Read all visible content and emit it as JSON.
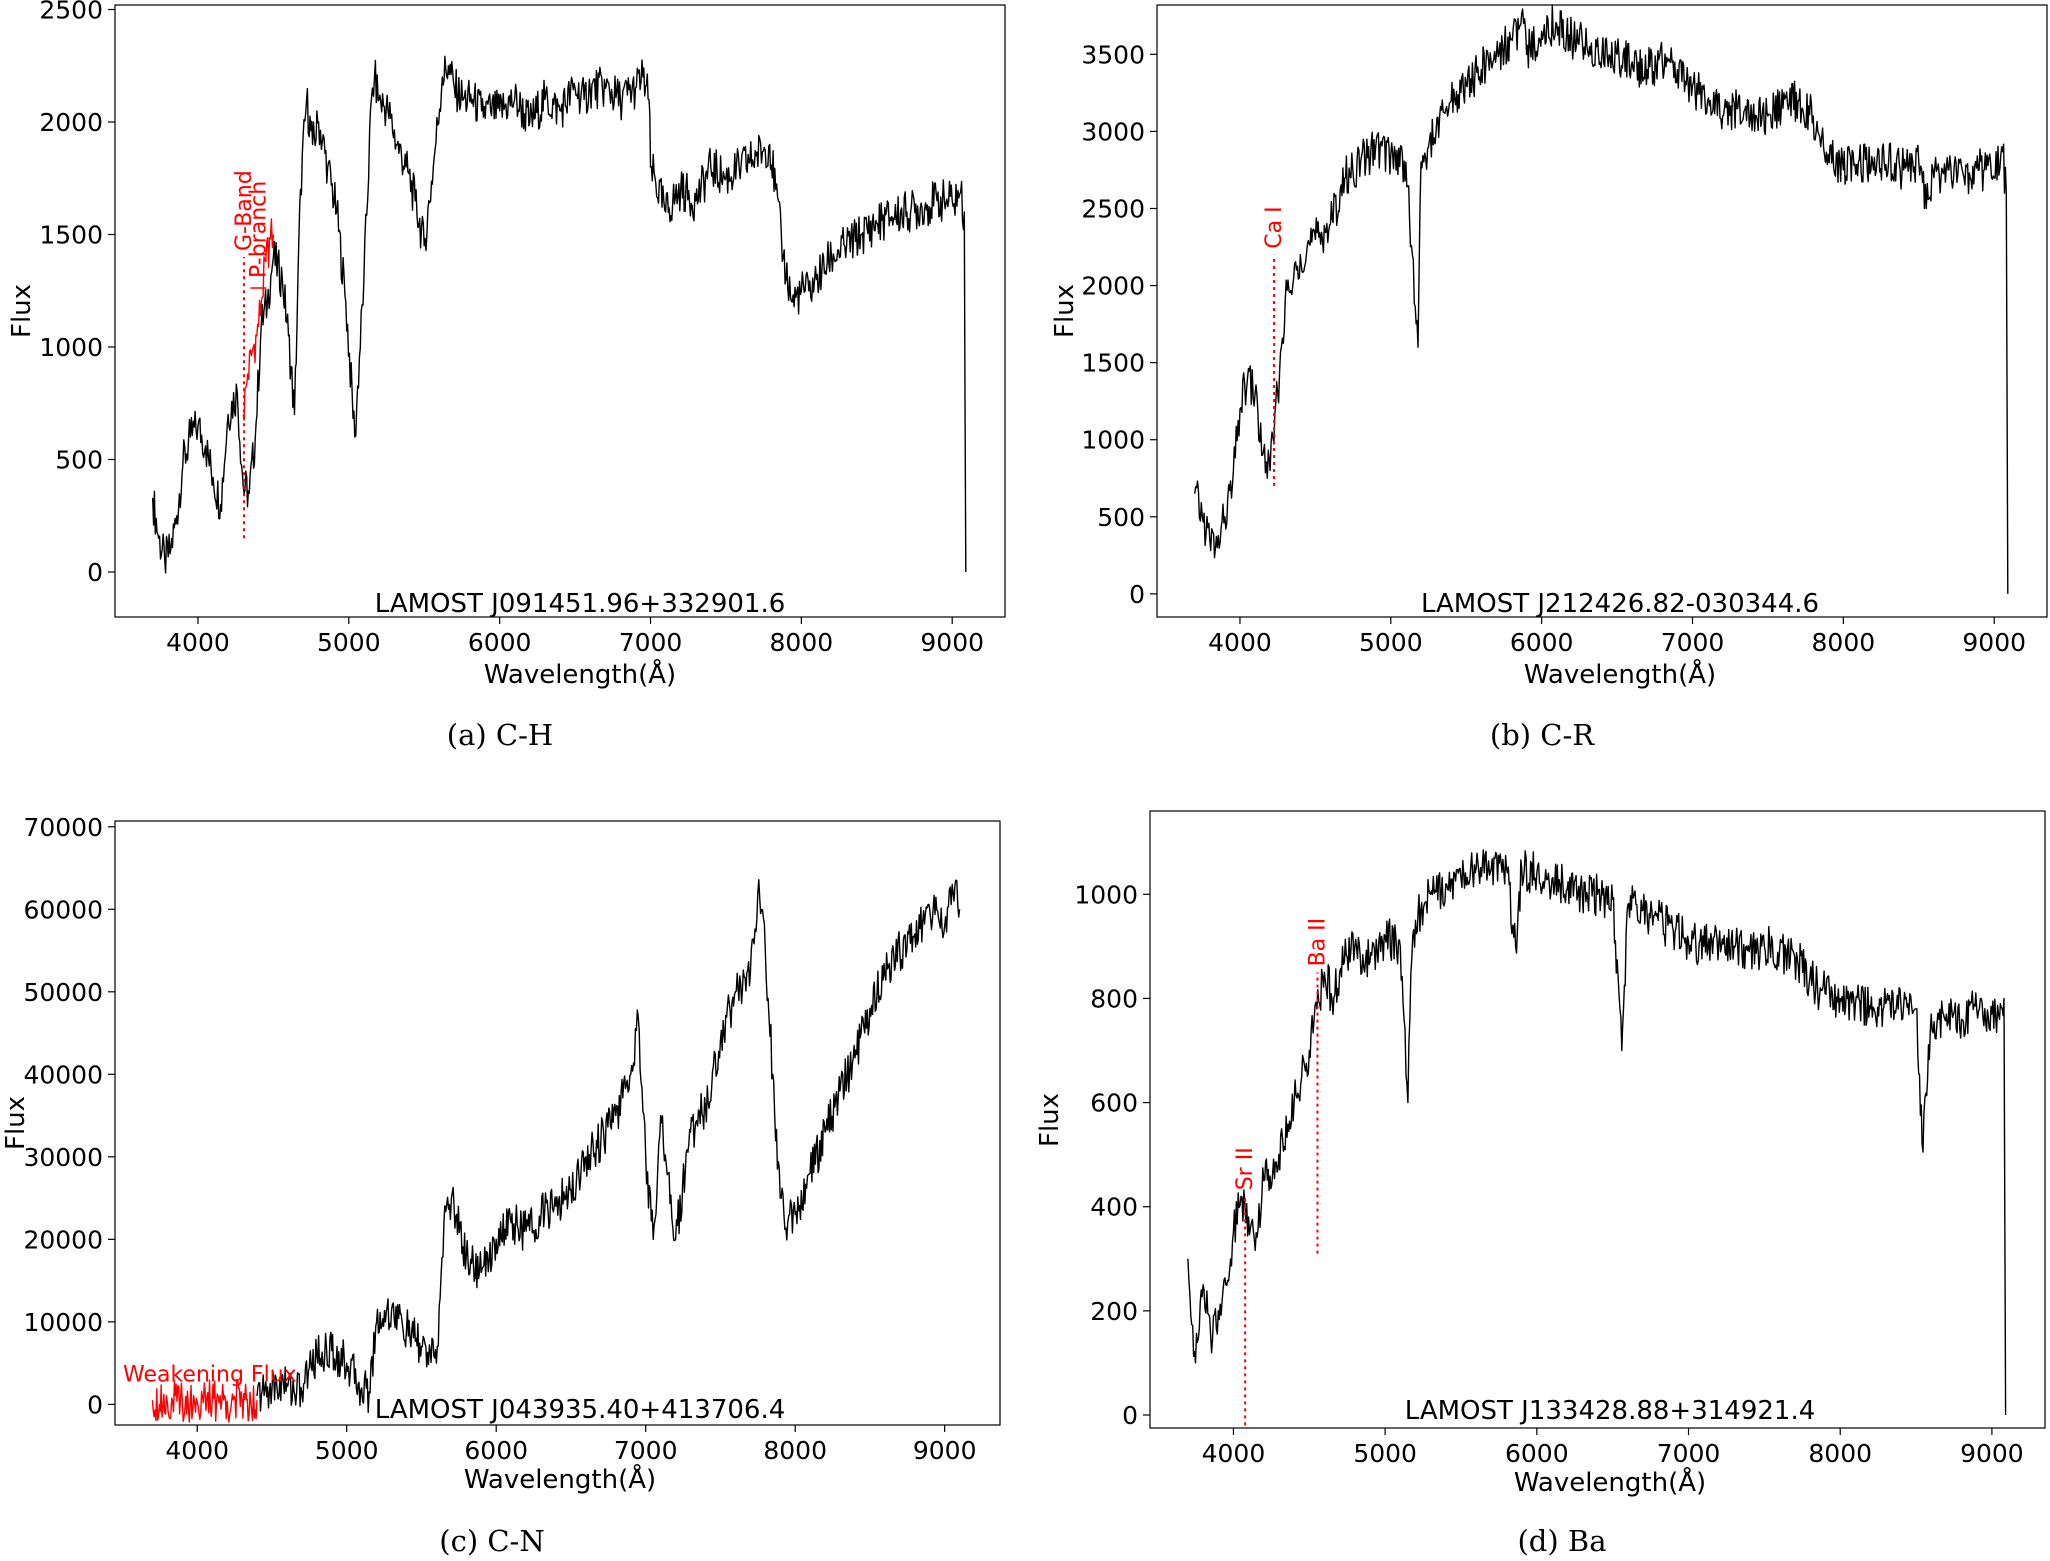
{
  "chart_data": [
    {
      "type": "line",
      "title": "LAMOST J091451.96+332901.6",
      "caption": "(a) C-H",
      "xlabel": "Wavelength(Å)",
      "ylabel": "Flux",
      "xlim": [
        3450,
        9350
      ],
      "ylim": [
        -200,
        2520
      ],
      "xticks": [
        4000,
        5000,
        6000,
        7000,
        8000,
        9000
      ],
      "yticks": [
        0,
        500,
        1000,
        1500,
        2000,
        2500
      ],
      "series": [
        {
          "color": "#000000",
          "x": [
            3700,
            3740,
            3780,
            3820,
            3860,
            3900,
            3950,
            4000,
            4050,
            4100,
            4150,
            4200,
            4260,
            4300,
            4340,
            4380,
            4420,
            4460,
            4500,
            4560,
            4600,
            4640,
            4680,
            4720,
            4760,
            4800,
            4860,
            4920,
            4980,
            5040,
            5100,
            5150,
            5170,
            5200,
            5260,
            5320,
            5380,
            5440,
            5500,
            5560,
            5620,
            5660,
            5700,
            5760,
            5820,
            5880,
            5940,
            6000,
            6100,
            6200,
            6300,
            6400,
            6500,
            6560,
            6600,
            6700,
            6800,
            6900,
            6950,
            6990,
            7000,
            7100,
            7200,
            7300,
            7400,
            7500,
            7600,
            7700,
            7790,
            7830,
            7880,
            7940,
            8000,
            8050,
            8100,
            8200,
            8300,
            8400,
            8500,
            8600,
            8700,
            8800,
            8900,
            9000,
            9050,
            9080,
            9090
          ],
          "y": [
            330,
            150,
            50,
            100,
            250,
            480,
            600,
            650,
            560,
            420,
            300,
            700,
            800,
            380,
            350,
            600,
            1100,
            1200,
            1400,
            1300,
            1050,
            700,
            1700,
            2100,
            1900,
            2000,
            1800,
            1600,
            1200,
            600,
            1300,
            2100,
            2200,
            2100,
            2050,
            1900,
            1800,
            1650,
            1450,
            1800,
            2200,
            2250,
            2150,
            2100,
            2100,
            2050,
            2050,
            2050,
            2100,
            2000,
            2100,
            2050,
            2150,
            2100,
            2150,
            2150,
            2100,
            2150,
            2200,
            2100,
            1800,
            1600,
            1700,
            1650,
            1800,
            1750,
            1800,
            1850,
            1900,
            1700,
            1400,
            1200,
            1250,
            1250,
            1300,
            1400,
            1450,
            1500,
            1550,
            1580,
            1600,
            1620,
            1650,
            1650,
            1680,
            1600,
            0
          ]
        },
        {
          "color": "#ff0000",
          "x": [
            4300,
            4330,
            4360,
            4390,
            4420,
            4450,
            4480,
            4500
          ],
          "y": [
            700,
            880,
            980,
            1050,
            1200,
            1380,
            1480,
            1500
          ]
        }
      ],
      "annotations": [
        {
          "label": "G-Band",
          "x": 4305,
          "y_from": 150,
          "y_to": 1400
        },
        {
          "label": "P-branch",
          "x": 4400,
          "y_from": 1400,
          "y_to": 1400
        }
      ]
    },
    {
      "type": "line",
      "title": "LAMOST J212426.82-030344.6",
      "caption": "(b) C-R",
      "xlabel": "Wavelength(Å)",
      "ylabel": "Flux",
      "xlim": [
        3450,
        9350
      ],
      "ylim": [
        -150,
        3820
      ],
      "xticks": [
        4000,
        5000,
        6000,
        7000,
        8000,
        9000
      ],
      "yticks": [
        0,
        500,
        1000,
        1500,
        2000,
        2500,
        3000,
        3500
      ],
      "series": [
        {
          "color": "#000000",
          "x": [
            3700,
            3750,
            3800,
            3850,
            3900,
            3950,
            4000,
            4050,
            4100,
            4150,
            4200,
            4250,
            4300,
            4350,
            4400,
            4500,
            4600,
            4700,
            4800,
            4900,
            5000,
            5100,
            5180,
            5200,
            5250,
            5300,
            5400,
            5500,
            5600,
            5700,
            5800,
            5880,
            5900,
            6000,
            6100,
            6200,
            6300,
            6400,
            6500,
            6600,
            6700,
            6800,
            6900,
            7000,
            7100,
            7200,
            7300,
            7400,
            7500,
            7600,
            7700,
            7800,
            7850,
            7900,
            8000,
            8100,
            8200,
            8300,
            8400,
            8500,
            8550,
            8600,
            8700,
            8800,
            8900,
            9000,
            9050,
            9080,
            9090
          ],
          "y": [
            650,
            500,
            350,
            300,
            500,
            700,
            1200,
            1400,
            1300,
            900,
            800,
            1300,
            1900,
            2000,
            2200,
            2300,
            2400,
            2700,
            2800,
            2900,
            2850,
            2800,
            1600,
            2800,
            2900,
            3000,
            3200,
            3300,
            3400,
            3500,
            3600,
            3700,
            3500,
            3650,
            3700,
            3600,
            3550,
            3500,
            3500,
            3450,
            3400,
            3450,
            3400,
            3300,
            3200,
            3100,
            3150,
            3100,
            3100,
            3150,
            3200,
            3100,
            2900,
            2850,
            2750,
            2800,
            2750,
            2800,
            2750,
            2800,
            2500,
            2700,
            2750,
            2700,
            2750,
            2700,
            2900,
            2600,
            0
          ]
        }
      ],
      "annotations": [
        {
          "label": "Ca I",
          "x": 4226,
          "y_from": 700,
          "y_to": 2200
        }
      ]
    },
    {
      "type": "line",
      "title": "LAMOST J043935.40+413706.4",
      "caption": "(c) C-N",
      "xlabel": "Wavelength(Å)",
      "ylabel": "Flux",
      "xlim": [
        3450,
        9370
      ],
      "ylim": [
        -2500,
        70700
      ],
      "xticks": [
        4000,
        5000,
        6000,
        7000,
        8000,
        9000
      ],
      "yticks": [
        0,
        10000,
        20000,
        30000,
        40000,
        50000,
        60000,
        70000
      ],
      "series": [
        {
          "color": "#ff0000",
          "x": [
            3700,
            3800,
            3900,
            4000,
            4100,
            4200,
            4300,
            4400
          ],
          "y": [
            500,
            300,
            400,
            300,
            400,
            400,
            500,
            500
          ]
        },
        {
          "color": "#000000",
          "x": [
            4400,
            4500,
            4600,
            4700,
            4750,
            4800,
            4900,
            5000,
            5100,
            5150,
            5200,
            5300,
            5400,
            5500,
            5600,
            5650,
            5700,
            5800,
            5900,
            6000,
            6100,
            6200,
            6300,
            6400,
            6500,
            6600,
            6700,
            6800,
            6900,
            6950,
            7000,
            7050,
            7100,
            7150,
            7200,
            7300,
            7400,
            7500,
            7600,
            7700,
            7750,
            7800,
            7850,
            7900,
            7950,
            8000,
            8100,
            8200,
            8300,
            8400,
            8500,
            8600,
            8700,
            8800,
            8900,
            9000,
            9050,
            9100
          ],
          "y": [
            1000,
            2000,
            2500,
            1500,
            4500,
            6000,
            6500,
            5000,
            2000,
            1500,
            10000,
            11500,
            9000,
            7000,
            5000,
            22000,
            25000,
            18000,
            16000,
            20000,
            22000,
            21000,
            23000,
            24000,
            26000,
            30000,
            32000,
            35000,
            40000,
            47000,
            30000,
            20000,
            35000,
            28000,
            20000,
            33000,
            36000,
            44000,
            50000,
            52000,
            62000,
            55000,
            40000,
            25000,
            22000,
            23000,
            28000,
            33000,
            38000,
            42000,
            48000,
            52000,
            55000,
            57000,
            60000,
            58000,
            63000,
            60000
          ]
        }
      ],
      "annotations": [
        {
          "label": "Weakening Flux"
        }
      ]
    },
    {
      "type": "line",
      "title": "LAMOST J133428.88+314921.4",
      "caption": "(d) Ba",
      "xlabel": "Wavelength(Å)",
      "ylabel": "Flux",
      "xlim": [
        3450,
        9350
      ],
      "ylim": [
        -25,
        1160
      ],
      "xticks": [
        4000,
        5000,
        6000,
        7000,
        8000,
        9000
      ],
      "yticks": [
        0,
        200,
        400,
        600,
        800,
        1000
      ],
      "series": [
        {
          "color": "#000000",
          "x": [
            3700,
            3750,
            3800,
            3850,
            3900,
            3950,
            4000,
            4050,
            4100,
            4150,
            4200,
            4300,
            4400,
            4450,
            4500,
            4550,
            4600,
            4650,
            4700,
            4750,
            4800,
            4900,
            5000,
            5100,
            5150,
            5170,
            5200,
            5300,
            5400,
            5500,
            5600,
            5700,
            5800,
            5860,
            5900,
            6000,
            6100,
            6200,
            6300,
            6400,
            6500,
            6560,
            6600,
            6700,
            6800,
            6900,
            7000,
            7100,
            7200,
            7300,
            7400,
            7500,
            7600,
            7700,
            7800,
            7850,
            7900,
            8000,
            8100,
            8200,
            8300,
            8400,
            8500,
            8540,
            8600,
            8650,
            8700,
            8800,
            8900,
            9000,
            9050,
            9080,
            9090
          ],
          "y": [
            300,
            100,
            250,
            150,
            200,
            250,
            350,
            420,
            380,
            350,
            450,
            500,
            600,
            650,
            700,
            780,
            850,
            800,
            850,
            880,
            900,
            870,
            920,
            900,
            600,
            850,
            950,
            1000,
            1020,
            1030,
            1050,
            1050,
            1050,
            900,
            1050,
            1040,
            1030,
            1010,
            1000,
            1000,
            990,
            700,
            980,
            970,
            950,
            930,
            910,
            900,
            910,
            900,
            890,
            900,
            890,
            880,
            840,
            820,
            810,
            800,
            790,
            780,
            790,
            790,
            780,
            520,
            770,
            760,
            770,
            760,
            780,
            770,
            760,
            800,
            0
          ]
        }
      ],
      "annotations": [
        {
          "label": "Sr II",
          "x": 4077,
          "y_from": -20,
          "y_to": 420
        },
        {
          "label": "Ba II",
          "x": 4554,
          "y_from": 310,
          "y_to": 850
        }
      ]
    }
  ]
}
